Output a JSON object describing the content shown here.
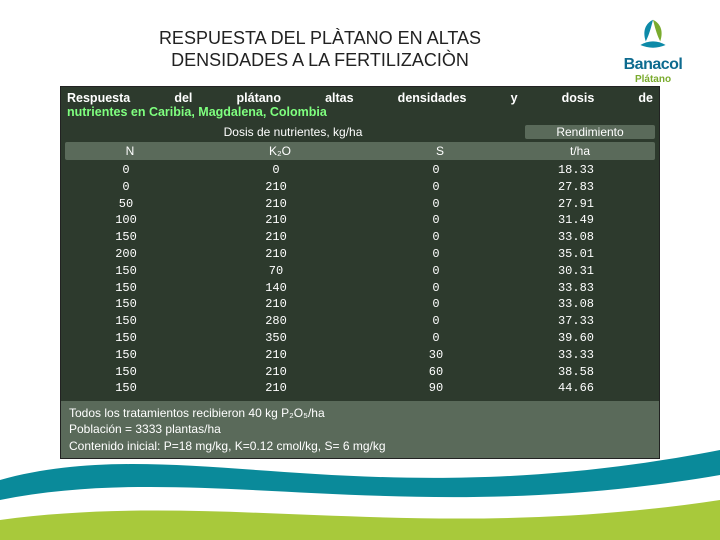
{
  "slide": {
    "title_line1": "RESPUESTA DEL PLÀTANO EN ALTAS",
    "title_line2": "DENSIDADES A LA FERTILIZACIÒN"
  },
  "logo": {
    "brand": "Banacol",
    "subline": "Plátano",
    "colors": {
      "blue": "#0d6b8f",
      "green": "#7aab2e"
    }
  },
  "table": {
    "type": "table",
    "background_color": "#2d3a2d",
    "row_alt_color": "#5a6a5a",
    "text_color": "#ffffff",
    "accent_color": "#7fff7f",
    "header_line1": "Respuesta del plátano altas densidades y dosis de",
    "header_line2": "nutrientes en Caribia, Magdalena, Colombia",
    "dosis_label": "Dosis de nutrientes, kg/ha",
    "rend_label": "Rendimiento",
    "columns": {
      "n": "N",
      "k": "K₂O",
      "s": "S",
      "r": "t/ha"
    },
    "rows": [
      {
        "n": "0",
        "k": "0",
        "s": "0",
        "r": "18.33"
      },
      {
        "n": "0",
        "k": "210",
        "s": "0",
        "r": "27.83"
      },
      {
        "n": "50",
        "k": "210",
        "s": "0",
        "r": "27.91"
      },
      {
        "n": "100",
        "k": "210",
        "s": "0",
        "r": "31.49"
      },
      {
        "n": "150",
        "k": "210",
        "s": "0",
        "r": "33.08"
      },
      {
        "n": "200",
        "k": "210",
        "s": "0",
        "r": "35.01"
      },
      {
        "n": "150",
        "k": "70",
        "s": "0",
        "r": "30.31"
      },
      {
        "n": "150",
        "k": "140",
        "s": "0",
        "r": "33.83"
      },
      {
        "n": "150",
        "k": "210",
        "s": "0",
        "r": "33.08"
      },
      {
        "n": "150",
        "k": "280",
        "s": "0",
        "r": "37.33"
      },
      {
        "n": "150",
        "k": "350",
        "s": "0",
        "r": "39.60"
      },
      {
        "n": "150",
        "k": "210",
        "s": "30",
        "r": "33.33"
      },
      {
        "n": "150",
        "k": "210",
        "s": "60",
        "r": "38.58"
      },
      {
        "n": "150",
        "k": "210",
        "s": "90",
        "r": "44.66"
      }
    ],
    "footnote1": "Todos los tratamientos recibieron 40 kg P₂O₅/ha",
    "footnote2": "Población = 3333 plantas/ha",
    "footnote3": "Contenido inicial: P=18 mg/kg, K=0.12 cmol/kg, S=  6 mg/kg"
  },
  "wave_colors": {
    "teal": "#0a8a9a",
    "green": "#a8c93b",
    "white": "#ffffff"
  }
}
